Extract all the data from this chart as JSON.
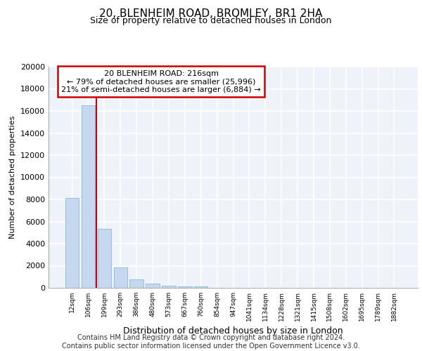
{
  "title1": "20, BLENHEIM ROAD, BROMLEY, BR1 2HA",
  "title2": "Size of property relative to detached houses in London",
  "xlabel": "Distribution of detached houses by size in London",
  "ylabel": "Number of detached properties",
  "bar_labels": [
    "12sqm",
    "106sqm",
    "199sqm",
    "293sqm",
    "386sqm",
    "480sqm",
    "573sqm",
    "667sqm",
    "760sqm",
    "854sqm",
    "947sqm",
    "1041sqm",
    "1134sqm",
    "1228sqm",
    "1321sqm",
    "1415sqm",
    "1508sqm",
    "1602sqm",
    "1695sqm",
    "1789sqm",
    "1882sqm"
  ],
  "bar_values": [
    8100,
    16500,
    5350,
    1850,
    750,
    350,
    200,
    130,
    100,
    0,
    0,
    0,
    0,
    0,
    0,
    0,
    0,
    0,
    0,
    0,
    0
  ],
  "bar_color": "#c5d8f0",
  "bar_edge_color": "#7aafd4",
  "property_line_x": 1.5,
  "annotation_line1": "20 BLENHEIM ROAD: 216sqm",
  "annotation_line2": "← 79% of detached houses are smaller (25,996)",
  "annotation_line3": "21% of semi-detached houses are larger (6,884) →",
  "annotation_box_color": "#ffffff",
  "annotation_box_edge_color": "#cc0000",
  "vline_color": "#cc0000",
  "ylim": [
    0,
    20000
  ],
  "yticks": [
    0,
    2000,
    4000,
    6000,
    8000,
    10000,
    12000,
    14000,
    16000,
    18000,
    20000
  ],
  "footer1": "Contains HM Land Registry data © Crown copyright and database right 2024.",
  "footer2": "Contains public sector information licensed under the Open Government Licence v3.0.",
  "background_color": "#eef2f9",
  "grid_color": "#ffffff",
  "title1_fontsize": 11,
  "title2_fontsize": 9,
  "annotation_fontsize": 8.0,
  "ylabel_fontsize": 8,
  "xlabel_fontsize": 9,
  "xtick_fontsize": 6.5,
  "ytick_fontsize": 8,
  "footer_fontsize": 7
}
